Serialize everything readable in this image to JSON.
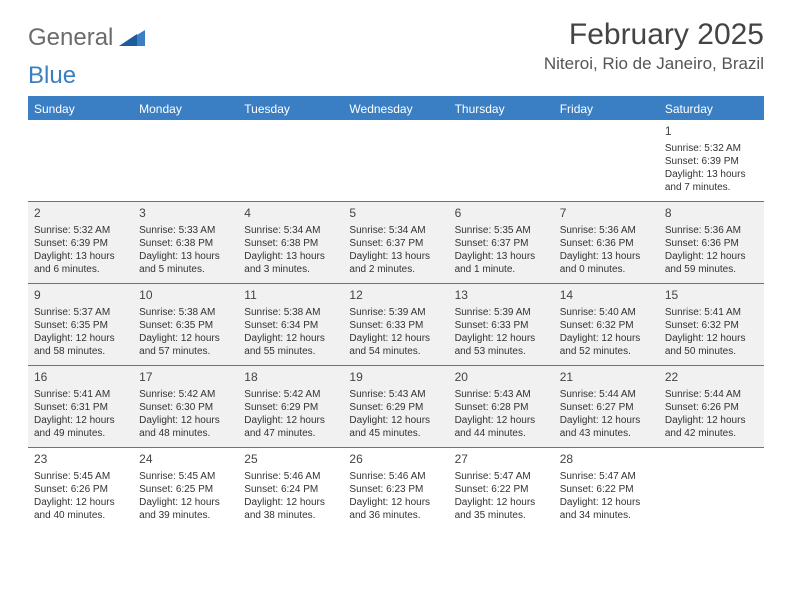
{
  "logo": {
    "text_general": "General",
    "text_blue": "Blue"
  },
  "title": "February 2025",
  "location": "Niteroi, Rio de Janeiro, Brazil",
  "colors": {
    "header_bar": "#3a7fc4",
    "shaded_cell": "#f1f1f1",
    "text": "#333333",
    "logo_gray": "#6b6b6b",
    "logo_blue": "#3a7fc4"
  },
  "weekdays": [
    "Sunday",
    "Monday",
    "Tuesday",
    "Wednesday",
    "Thursday",
    "Friday",
    "Saturday"
  ],
  "weeks": [
    [
      {
        "n": "",
        "shaded": false
      },
      {
        "n": "",
        "shaded": false
      },
      {
        "n": "",
        "shaded": false
      },
      {
        "n": "",
        "shaded": false
      },
      {
        "n": "",
        "shaded": false
      },
      {
        "n": "",
        "shaded": false
      },
      {
        "n": "1",
        "shaded": false,
        "sr": "Sunrise: 5:32 AM",
        "ss": "Sunset: 6:39 PM",
        "d1": "Daylight: 13 hours",
        "d2": "and 7 minutes."
      }
    ],
    [
      {
        "n": "2",
        "shaded": true,
        "sr": "Sunrise: 5:32 AM",
        "ss": "Sunset: 6:39 PM",
        "d1": "Daylight: 13 hours",
        "d2": "and 6 minutes."
      },
      {
        "n": "3",
        "shaded": true,
        "sr": "Sunrise: 5:33 AM",
        "ss": "Sunset: 6:38 PM",
        "d1": "Daylight: 13 hours",
        "d2": "and 5 minutes."
      },
      {
        "n": "4",
        "shaded": true,
        "sr": "Sunrise: 5:34 AM",
        "ss": "Sunset: 6:38 PM",
        "d1": "Daylight: 13 hours",
        "d2": "and 3 minutes."
      },
      {
        "n": "5",
        "shaded": true,
        "sr": "Sunrise: 5:34 AM",
        "ss": "Sunset: 6:37 PM",
        "d1": "Daylight: 13 hours",
        "d2": "and 2 minutes."
      },
      {
        "n": "6",
        "shaded": true,
        "sr": "Sunrise: 5:35 AM",
        "ss": "Sunset: 6:37 PM",
        "d1": "Daylight: 13 hours",
        "d2": "and 1 minute."
      },
      {
        "n": "7",
        "shaded": true,
        "sr": "Sunrise: 5:36 AM",
        "ss": "Sunset: 6:36 PM",
        "d1": "Daylight: 13 hours",
        "d2": "and 0 minutes."
      },
      {
        "n": "8",
        "shaded": true,
        "sr": "Sunrise: 5:36 AM",
        "ss": "Sunset: 6:36 PM",
        "d1": "Daylight: 12 hours",
        "d2": "and 59 minutes."
      }
    ],
    [
      {
        "n": "9",
        "shaded": true,
        "sr": "Sunrise: 5:37 AM",
        "ss": "Sunset: 6:35 PM",
        "d1": "Daylight: 12 hours",
        "d2": "and 58 minutes."
      },
      {
        "n": "10",
        "shaded": true,
        "sr": "Sunrise: 5:38 AM",
        "ss": "Sunset: 6:35 PM",
        "d1": "Daylight: 12 hours",
        "d2": "and 57 minutes."
      },
      {
        "n": "11",
        "shaded": true,
        "sr": "Sunrise: 5:38 AM",
        "ss": "Sunset: 6:34 PM",
        "d1": "Daylight: 12 hours",
        "d2": "and 55 minutes."
      },
      {
        "n": "12",
        "shaded": true,
        "sr": "Sunrise: 5:39 AM",
        "ss": "Sunset: 6:33 PM",
        "d1": "Daylight: 12 hours",
        "d2": "and 54 minutes."
      },
      {
        "n": "13",
        "shaded": true,
        "sr": "Sunrise: 5:39 AM",
        "ss": "Sunset: 6:33 PM",
        "d1": "Daylight: 12 hours",
        "d2": "and 53 minutes."
      },
      {
        "n": "14",
        "shaded": true,
        "sr": "Sunrise: 5:40 AM",
        "ss": "Sunset: 6:32 PM",
        "d1": "Daylight: 12 hours",
        "d2": "and 52 minutes."
      },
      {
        "n": "15",
        "shaded": true,
        "sr": "Sunrise: 5:41 AM",
        "ss": "Sunset: 6:32 PM",
        "d1": "Daylight: 12 hours",
        "d2": "and 50 minutes."
      }
    ],
    [
      {
        "n": "16",
        "shaded": true,
        "sr": "Sunrise: 5:41 AM",
        "ss": "Sunset: 6:31 PM",
        "d1": "Daylight: 12 hours",
        "d2": "and 49 minutes."
      },
      {
        "n": "17",
        "shaded": true,
        "sr": "Sunrise: 5:42 AM",
        "ss": "Sunset: 6:30 PM",
        "d1": "Daylight: 12 hours",
        "d2": "and 48 minutes."
      },
      {
        "n": "18",
        "shaded": true,
        "sr": "Sunrise: 5:42 AM",
        "ss": "Sunset: 6:29 PM",
        "d1": "Daylight: 12 hours",
        "d2": "and 47 minutes."
      },
      {
        "n": "19",
        "shaded": true,
        "sr": "Sunrise: 5:43 AM",
        "ss": "Sunset: 6:29 PM",
        "d1": "Daylight: 12 hours",
        "d2": "and 45 minutes."
      },
      {
        "n": "20",
        "shaded": true,
        "sr": "Sunrise: 5:43 AM",
        "ss": "Sunset: 6:28 PM",
        "d1": "Daylight: 12 hours",
        "d2": "and 44 minutes."
      },
      {
        "n": "21",
        "shaded": true,
        "sr": "Sunrise: 5:44 AM",
        "ss": "Sunset: 6:27 PM",
        "d1": "Daylight: 12 hours",
        "d2": "and 43 minutes."
      },
      {
        "n": "22",
        "shaded": true,
        "sr": "Sunrise: 5:44 AM",
        "ss": "Sunset: 6:26 PM",
        "d1": "Daylight: 12 hours",
        "d2": "and 42 minutes."
      }
    ],
    [
      {
        "n": "23",
        "shaded": false,
        "sr": "Sunrise: 5:45 AM",
        "ss": "Sunset: 6:26 PM",
        "d1": "Daylight: 12 hours",
        "d2": "and 40 minutes."
      },
      {
        "n": "24",
        "shaded": false,
        "sr": "Sunrise: 5:45 AM",
        "ss": "Sunset: 6:25 PM",
        "d1": "Daylight: 12 hours",
        "d2": "and 39 minutes."
      },
      {
        "n": "25",
        "shaded": false,
        "sr": "Sunrise: 5:46 AM",
        "ss": "Sunset: 6:24 PM",
        "d1": "Daylight: 12 hours",
        "d2": "and 38 minutes."
      },
      {
        "n": "26",
        "shaded": false,
        "sr": "Sunrise: 5:46 AM",
        "ss": "Sunset: 6:23 PM",
        "d1": "Daylight: 12 hours",
        "d2": "and 36 minutes."
      },
      {
        "n": "27",
        "shaded": false,
        "sr": "Sunrise: 5:47 AM",
        "ss": "Sunset: 6:22 PM",
        "d1": "Daylight: 12 hours",
        "d2": "and 35 minutes."
      },
      {
        "n": "28",
        "shaded": false,
        "sr": "Sunrise: 5:47 AM",
        "ss": "Sunset: 6:22 PM",
        "d1": "Daylight: 12 hours",
        "d2": "and 34 minutes."
      },
      {
        "n": "",
        "shaded": false
      }
    ]
  ]
}
